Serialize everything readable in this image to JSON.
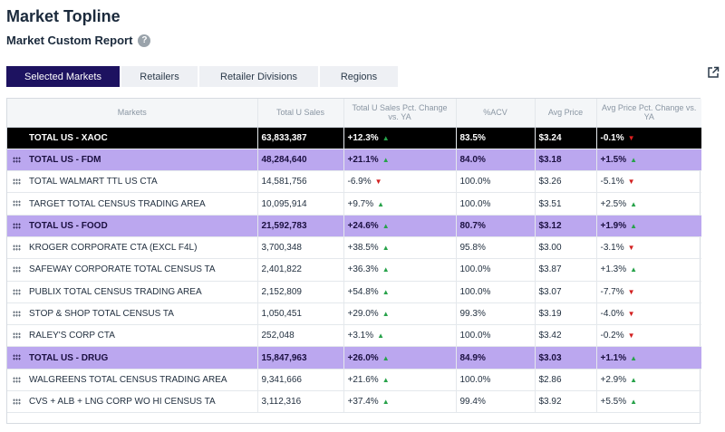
{
  "header": {
    "title": "Market Topline",
    "subtitle": "Market Custom Report",
    "help_icon": "?"
  },
  "tabs": [
    {
      "label": "Selected Markets",
      "active": true
    },
    {
      "label": "Retailers",
      "active": false
    },
    {
      "label": "Retailer Divisions",
      "active": false
    },
    {
      "label": "Regions",
      "active": false
    }
  ],
  "table": {
    "columns": [
      "Markets",
      "Total U Sales",
      "Total U Sales Pct. Change vs. YA",
      "%ACV",
      "Avg Price",
      "Avg Price Pct. Change vs. YA"
    ],
    "rows": [
      {
        "market": "TOTAL US - XAOC",
        "sales": "63,833,387",
        "sales_pct": "+12.3%",
        "sales_dir": "up",
        "acv": "83.5%",
        "price": "$3.24",
        "price_pct": "-0.1%",
        "price_dir": "down",
        "kind": "total"
      },
      {
        "market": "TOTAL US - FDM",
        "sales": "48,284,640",
        "sales_pct": "+21.1%",
        "sales_dir": "up",
        "acv": "84.0%",
        "price": "$3.18",
        "price_pct": "+1.5%",
        "price_dir": "up",
        "kind": "group"
      },
      {
        "market": "TOTAL WALMART TTL US CTA",
        "sales": "14,581,756",
        "sales_pct": "-6.9%",
        "sales_dir": "down",
        "acv": "100.0%",
        "price": "$3.26",
        "price_pct": "-5.1%",
        "price_dir": "down",
        "kind": "row"
      },
      {
        "market": "TARGET TOTAL CENSUS TRADING AREA",
        "sales": "10,095,914",
        "sales_pct": "+9.7%",
        "sales_dir": "up",
        "acv": "100.0%",
        "price": "$3.51",
        "price_pct": "+2.5%",
        "price_dir": "up",
        "kind": "row"
      },
      {
        "market": "TOTAL US - FOOD",
        "sales": "21,592,783",
        "sales_pct": "+24.6%",
        "sales_dir": "up",
        "acv": "80.7%",
        "price": "$3.12",
        "price_pct": "+1.9%",
        "price_dir": "up",
        "kind": "group"
      },
      {
        "market": "KROGER CORPORATE CTA (EXCL F4L)",
        "sales": "3,700,348",
        "sales_pct": "+38.5%",
        "sales_dir": "up",
        "acv": "95.8%",
        "price": "$3.00",
        "price_pct": "-3.1%",
        "price_dir": "down",
        "kind": "row"
      },
      {
        "market": "SAFEWAY CORPORATE TOTAL CENSUS TA",
        "sales": "2,401,822",
        "sales_pct": "+36.3%",
        "sales_dir": "up",
        "acv": "100.0%",
        "price": "$3.87",
        "price_pct": "+1.3%",
        "price_dir": "up",
        "kind": "row"
      },
      {
        "market": "PUBLIX TOTAL CENSUS TRADING AREA",
        "sales": "2,152,809",
        "sales_pct": "+54.8%",
        "sales_dir": "up",
        "acv": "100.0%",
        "price": "$3.07",
        "price_pct": "-7.7%",
        "price_dir": "down",
        "kind": "row"
      },
      {
        "market": "STOP & SHOP TOTAL CENSUS TA",
        "sales": "1,050,451",
        "sales_pct": "+29.0%",
        "sales_dir": "up",
        "acv": "99.3%",
        "price": "$3.19",
        "price_pct": "-4.0%",
        "price_dir": "down",
        "kind": "row"
      },
      {
        "market": "RALEY'S CORP CTA",
        "sales": "252,048",
        "sales_pct": "+3.1%",
        "sales_dir": "up",
        "acv": "100.0%",
        "price": "$3.42",
        "price_pct": "-0.2%",
        "price_dir": "down",
        "kind": "row"
      },
      {
        "market": "TOTAL US - DRUG",
        "sales": "15,847,963",
        "sales_pct": "+26.0%",
        "sales_dir": "up",
        "acv": "84.9%",
        "price": "$3.03",
        "price_pct": "+1.1%",
        "price_dir": "up",
        "kind": "group"
      },
      {
        "market": "WALGREENS TOTAL CENSUS TRADING AREA",
        "sales": "9,341,666",
        "sales_pct": "+21.6%",
        "sales_dir": "up",
        "acv": "100.0%",
        "price": "$2.86",
        "price_pct": "+2.9%",
        "price_dir": "up",
        "kind": "row"
      },
      {
        "market": "CVS + ALB + LNG CORP WO HI CENSUS TA",
        "sales": "3,112,316",
        "sales_pct": "+37.4%",
        "sales_dir": "up",
        "acv": "99.4%",
        "price": "$3.92",
        "price_pct": "+5.5%",
        "price_dir": "up",
        "kind": "row"
      }
    ]
  },
  "icons": {
    "help": "help-icon",
    "external": "external-link-icon",
    "drag": "drag-handle-icon",
    "up": "arrow-up-icon",
    "down": "arrow-down-icon"
  },
  "colors": {
    "active_tab": "#1d1260",
    "group_row": "#bba7ef",
    "total_row": "#000000",
    "up": "#27a24a",
    "down": "#d21f1f"
  }
}
